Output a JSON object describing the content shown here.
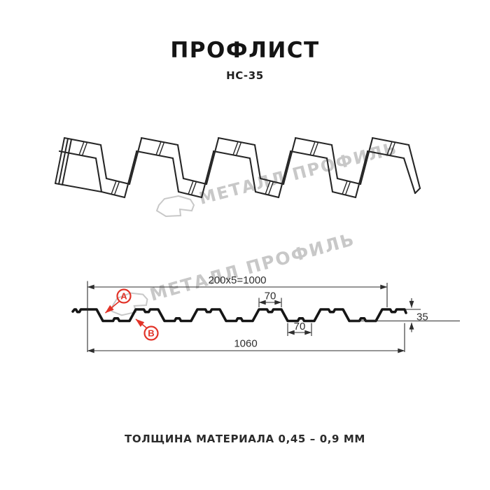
{
  "header": {
    "title": "ПРОФЛИСТ",
    "subtitle": "НС-35"
  },
  "watermark": {
    "text": "МЕТАЛЛ ПРОФИЛЬ",
    "color": "#c8c8c8"
  },
  "cross_section": {
    "dim_top": "200x5=1000",
    "dim_flange": "70",
    "dim_valley": "70",
    "dim_height": "35",
    "dim_overall": "1060",
    "label_a": "A",
    "label_b": "B"
  },
  "footer": {
    "thickness": "ТОЛЩИНА МАТЕРИАЛА 0,45 – 0,9 ММ"
  },
  "colors": {
    "line": "#1c1c1c",
    "dim": "#2e2e2e",
    "accent_red": "#e23328",
    "watermark": "#c8c8c8"
  }
}
